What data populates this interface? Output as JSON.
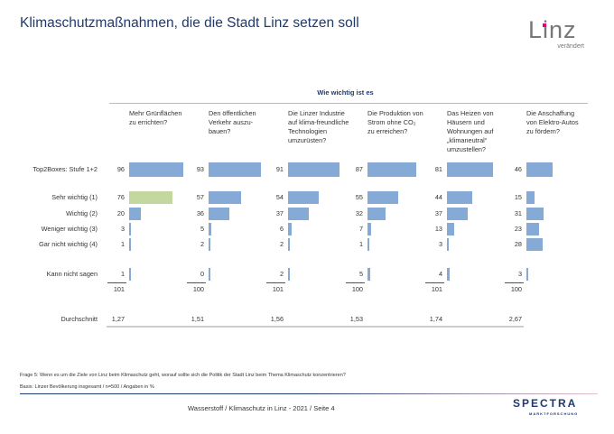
{
  "title": "Klimaschutzmaßnahmen, die die Stadt Linz setzen soll",
  "logo": {
    "text": "Linz",
    "subtitle": "verändert"
  },
  "chart_data": {
    "type": "bar",
    "title": "Wie wichtig ist es",
    "categories": [
      "Mehr Grünflächen zu errichten?",
      "Den öffentlichen Verkehr auszu-bauen?",
      "Die Linzer Industrie auf klima-freundliche Technologien umzurüsten?",
      "Die Produktion von Strom ohne CO₂ zu erreichen?",
      "Das Heizen von Häusern und Wohnungen auf „klimaneutral“ umzustellen?",
      "Die Anschaffung von Elektro-Autos zu fördern?"
    ],
    "category_lines": [
      [
        "Mehr Grünflächen",
        "zu errichten?"
      ],
      [
        "Den öffentlichen",
        "Verkehr auszu-",
        "bauen?"
      ],
      [
        "Die Linzer Industrie",
        "auf klima-freundliche",
        "Technologien",
        "umzurüsten?"
      ],
      [
        "Die Produktion von",
        "Strom ohne CO₂",
        "zu erreichen?"
      ],
      [
        "Das Heizen von",
        "Häusern und",
        "Wohnungen auf",
        "„klimaneutral“",
        "umzustellen?"
      ],
      [
        "Die Anschaffung",
        "von Elektro-Autos",
        "zu fördern?"
      ]
    ],
    "series": [
      {
        "name": "Top2Boxes: Stufe 1+2",
        "values": [
          96,
          93,
          91,
          87,
          81,
          46
        ]
      },
      {
        "name": "Sehr wichtig (1)",
        "values": [
          76,
          57,
          54,
          55,
          44,
          15
        ]
      },
      {
        "name": "Wichtig (2)",
        "values": [
          20,
          36,
          37,
          32,
          37,
          31
        ]
      },
      {
        "name": "Weniger wichtig (3)",
        "values": [
          3,
          5,
          6,
          7,
          13,
          23
        ]
      },
      {
        "name": "Gar nicht wichtig (4)",
        "values": [
          1,
          2,
          2,
          1,
          3,
          28
        ]
      },
      {
        "name": "Kann nicht sagen",
        "values": [
          1,
          0,
          2,
          5,
          4,
          3
        ]
      }
    ],
    "totals": [
      101,
      100,
      101,
      100,
      101,
      100
    ],
    "average_label": "Durchschnitt",
    "averages": [
      "1,27",
      "1,51",
      "1,56",
      "1,53",
      "1,74",
      "2,67"
    ],
    "unit": "%",
    "colors": {
      "bar": "#86aad6",
      "highlight": "#c3d79e"
    },
    "highlight": {
      "series": 1,
      "category": 0
    }
  },
  "footer": {
    "question": "Frage 5: Wenn es um die Ziele von Linz beim Klimaschutz geht, worauf sollte sich die Politik der Stadt Linz beim Thema Klimaschutz konzentrieren?",
    "basis": "Basis: Linzer Bevölkerung insgesamt / n=500 / Angaben in %",
    "center": "Wasserstoff / Klimaschutz in Linz - 2021  /  Seite  4",
    "brand": "SPECTRA",
    "brand_sub": "MARKTFORSCHUNG"
  }
}
